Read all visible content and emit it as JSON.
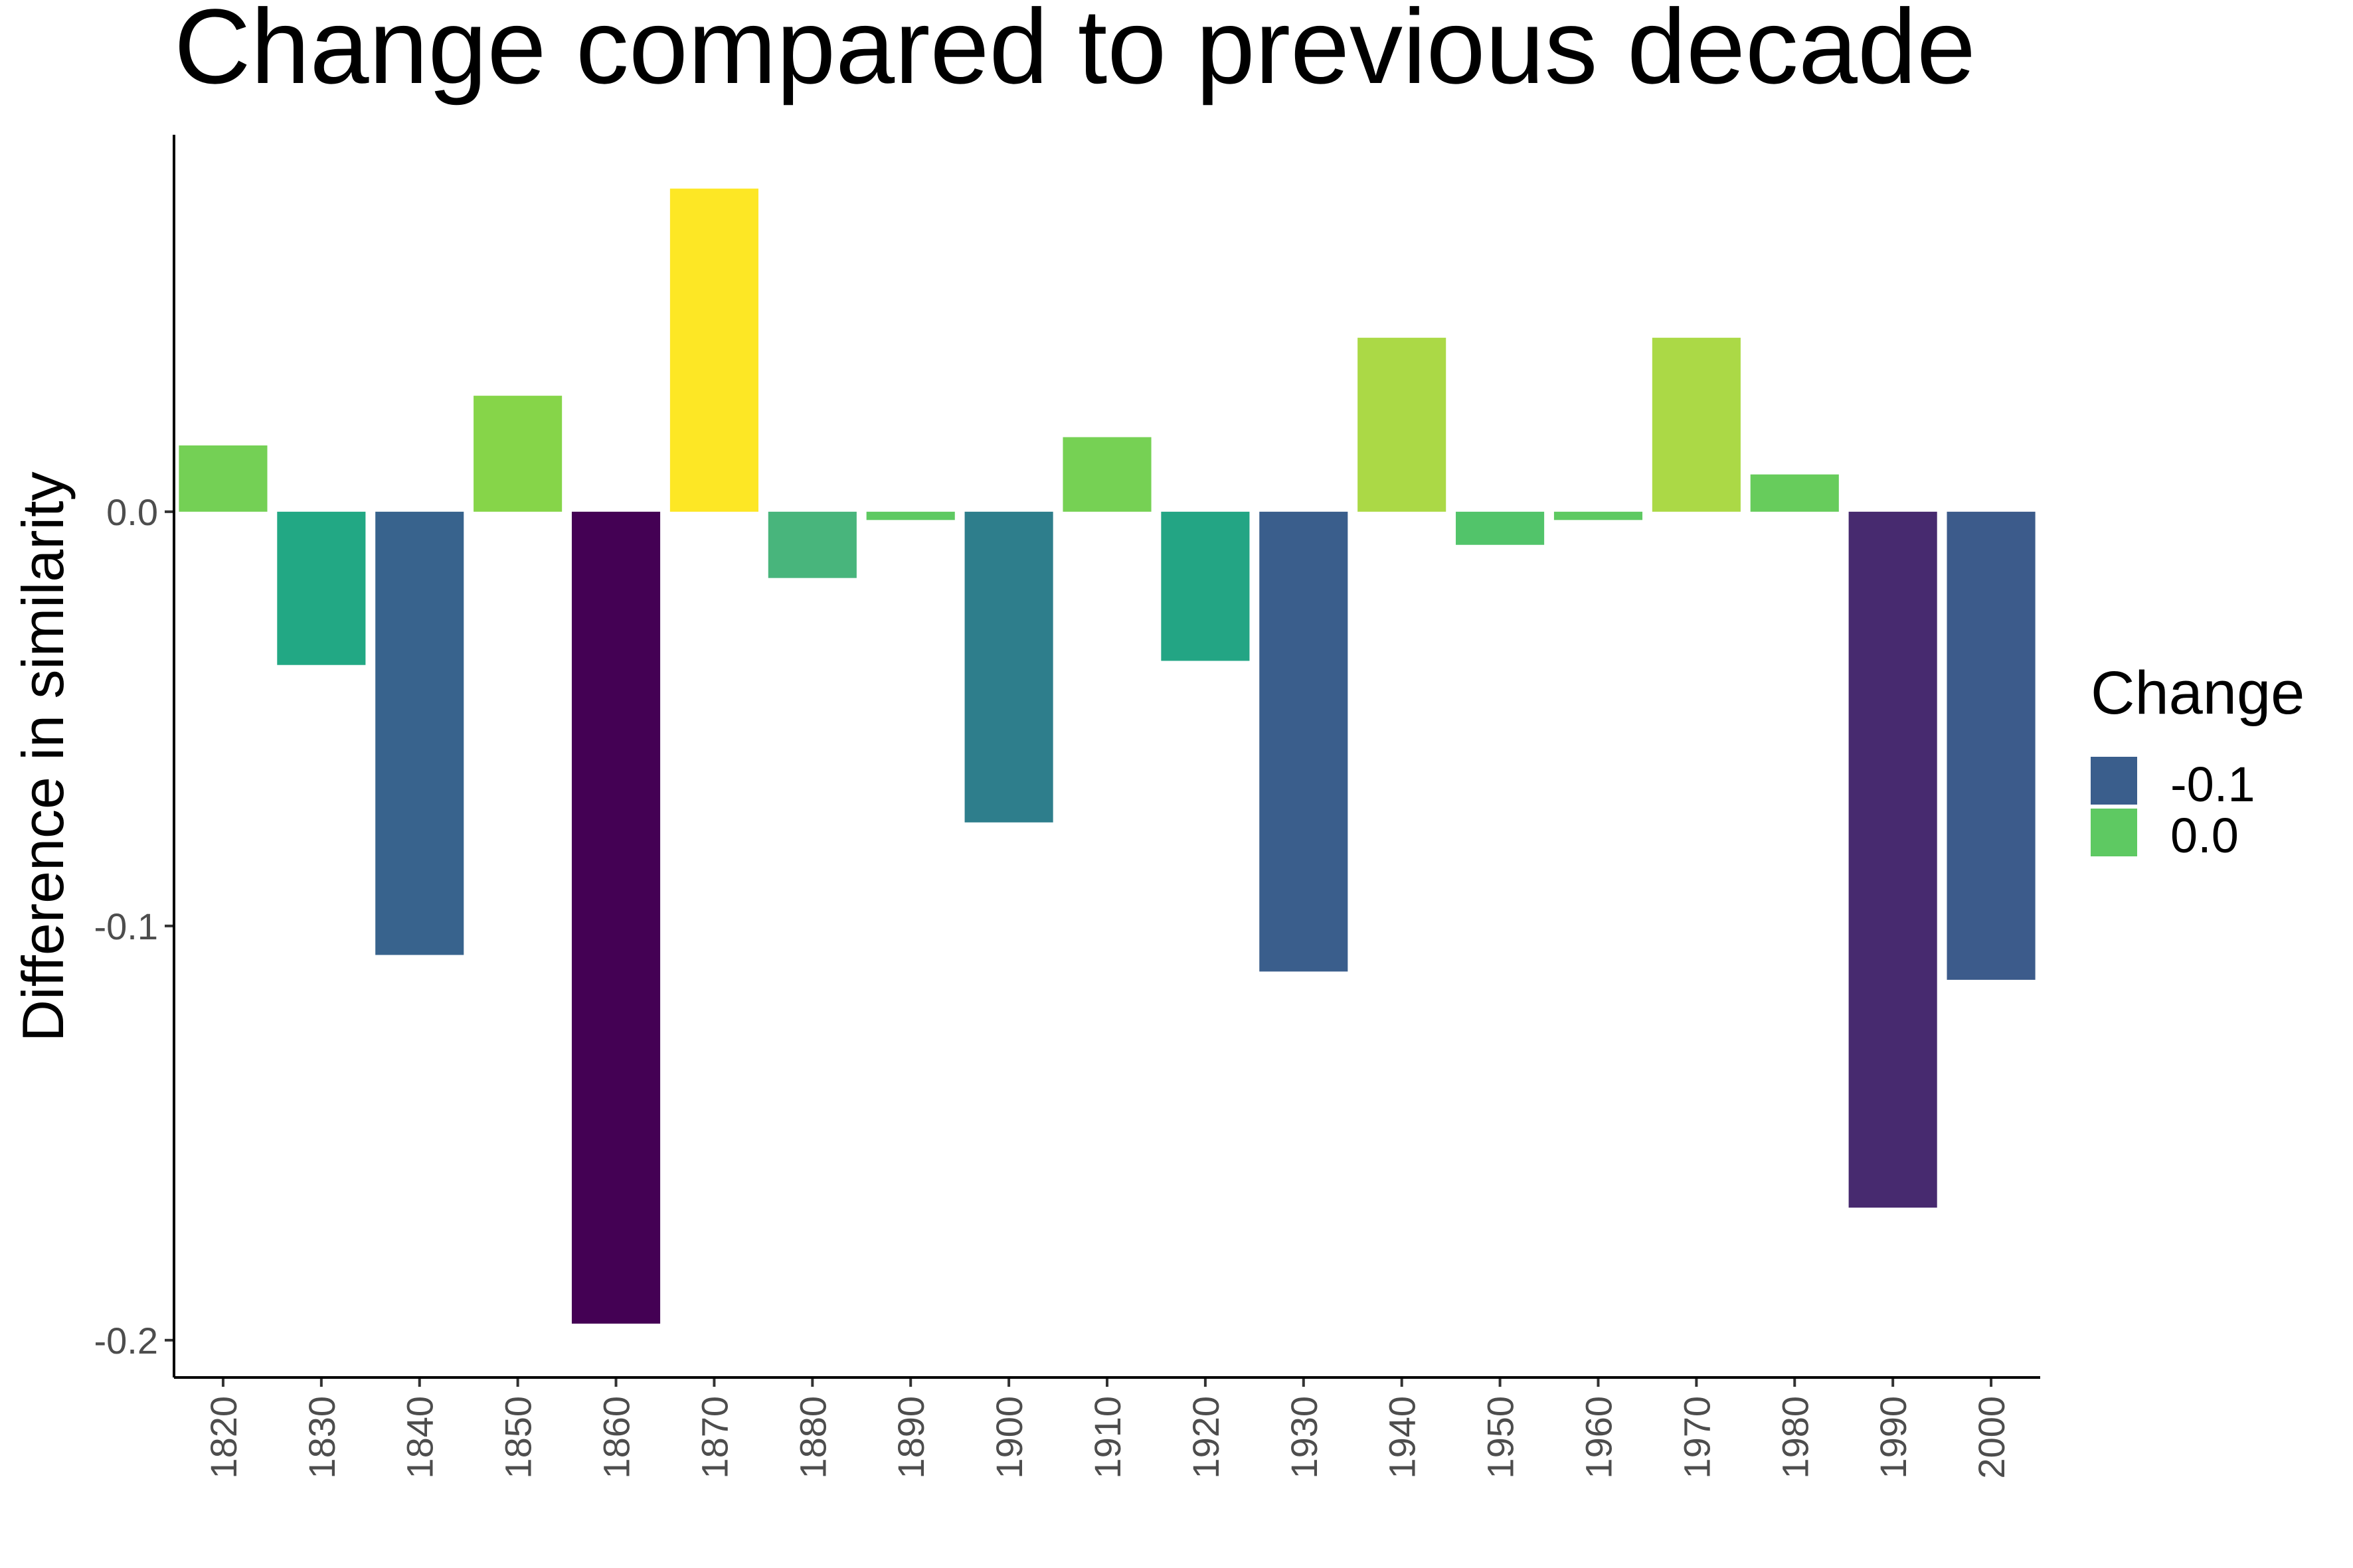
{
  "chart_data": {
    "type": "bar",
    "title": "Change compared to previous decade",
    "xlabel": "",
    "ylabel": "Difference in similarity",
    "ylim": [
      -0.209,
      0.091
    ],
    "yticks": [
      0.0,
      -0.1,
      -0.2
    ],
    "ytick_labels": [
      "0.0",
      "-0.1",
      "-0.2"
    ],
    "grid": false,
    "categories": [
      "1820",
      "1830",
      "1840",
      "1850",
      "1860",
      "1870",
      "1880",
      "1890",
      "1900",
      "1910",
      "1920",
      "1930",
      "1940",
      "1950",
      "1960",
      "1970",
      "1980",
      "1990",
      "2000"
    ],
    "values": [
      0.016,
      -0.037,
      -0.107,
      0.028,
      -0.196,
      0.078,
      -0.016,
      -0.002,
      -0.075,
      0.018,
      -0.036,
      -0.111,
      0.042,
      -0.008,
      -0.002,
      0.042,
      0.009,
      -0.168,
      -0.113
    ],
    "bar_colors": [
      "#74D055",
      "#22A884",
      "#38638D",
      "#86D549",
      "#440154",
      "#FDE725",
      "#48B57C",
      "#5EC962",
      "#2E7E8C",
      "#76D154",
      "#23A584",
      "#3A5E8C",
      "#ABD946",
      "#52C46A",
      "#5EC962",
      "#ABD946",
      "#67CC5C",
      "#472A6F",
      "#3C5B8B"
    ],
    "legend": {
      "title": "Change",
      "placement": "right",
      "entries": [
        {
          "label": "-0.1",
          "color": "#3A5E8C"
        },
        {
          "label": "0.0",
          "color": "#5EC962"
        }
      ]
    }
  }
}
